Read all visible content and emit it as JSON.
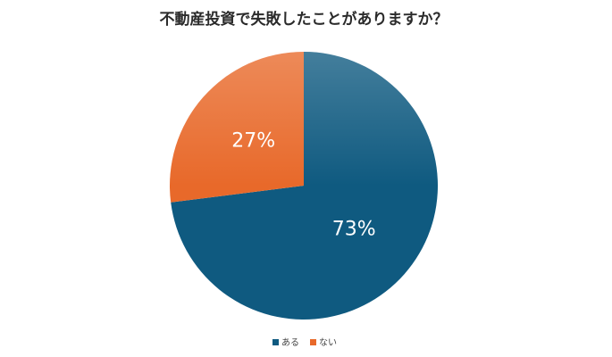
{
  "chart_data": {
    "type": "pie",
    "title": "不動産投資で失敗したことがありますか？",
    "categories": [
      "ある",
      "ない"
    ],
    "values": [
      73,
      27
    ],
    "value_labels": [
      "73%",
      "27%"
    ],
    "colors": [
      "#0f5a80",
      "#e8692a"
    ],
    "legend": "bottom"
  }
}
